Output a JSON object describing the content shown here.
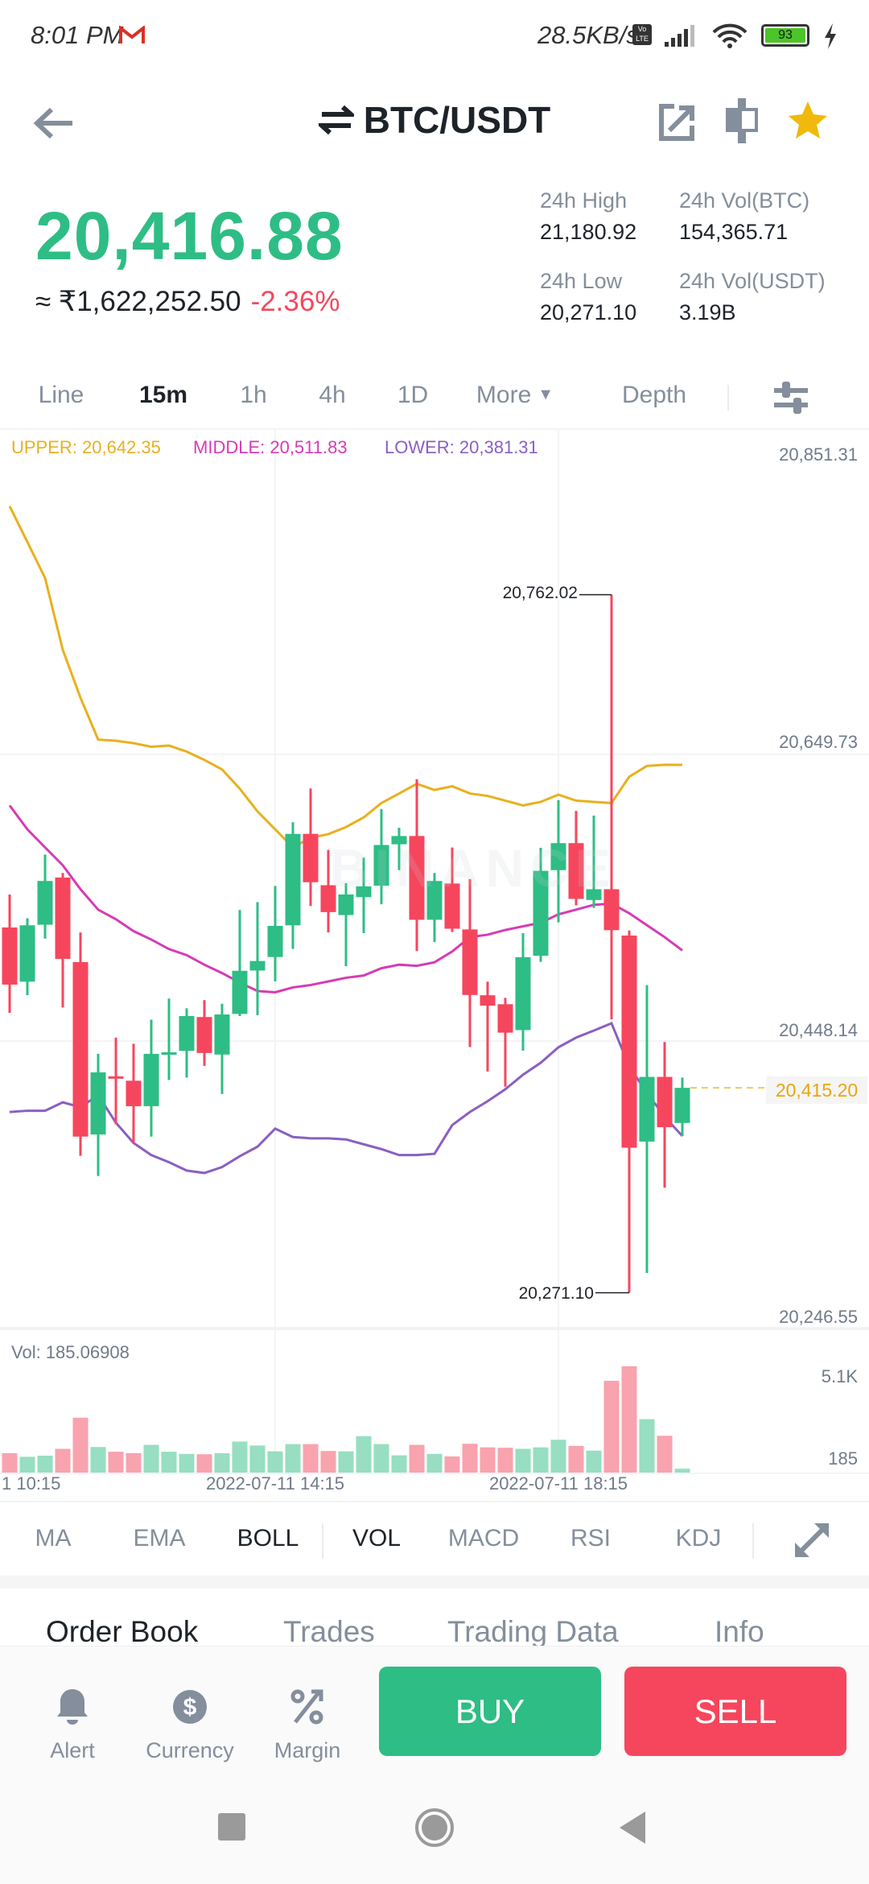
{
  "status_bar": {
    "time": "8:01 PM",
    "net_speed": "28.5KB/s",
    "volte": "Vo LTE",
    "battery": "93"
  },
  "header": {
    "pair": "BTC/USDT"
  },
  "ticker": {
    "last_price": "20,416.88",
    "fiat_approx": "≈ ₹1,622,252.50",
    "change_pct": "-2.36%",
    "stats": [
      {
        "label": "24h High",
        "value": "21,180.92"
      },
      {
        "label": "24h Vol(BTC)",
        "value": "154,365.71"
      },
      {
        "label": "24h Low",
        "value": "20,271.10"
      },
      {
        "label": "24h Vol(USDT)",
        "value": "3.19B"
      }
    ]
  },
  "intervals": {
    "items": [
      "Line",
      "15m",
      "1h",
      "4h",
      "1D",
      "More",
      "Depth"
    ],
    "active": "15m"
  },
  "colors": {
    "up": "#2EBD85",
    "down": "#F6465D",
    "upper": "#E9B01E",
    "middle": "#D63BB5",
    "lower": "#8A5FC2",
    "accent": "#F0B90B"
  },
  "chart_data": {
    "type": "candlestick",
    "interval": "15m",
    "legend": [
      "UPPER: 20,642.35",
      "MIDDLE: 20,511.83",
      "LOWER: 20,381.31"
    ],
    "ylim": [
      20245.4,
      20874.5
    ],
    "y_ticks": [
      20851.31,
      20649.73,
      20448.14,
      20246.55
    ],
    "y_tick_labels": [
      "20,851.31",
      "20,649.73",
      "20,448.14",
      "20,246.55"
    ],
    "high_marker": "20,762.02",
    "low_marker": "20,271.10",
    "current_price": 20415.2,
    "current_price_label": "20,415.20",
    "x_labels": [
      "1 10:15",
      "2022-07-11 14:15",
      "2022-07-11 18:15"
    ],
    "x_label_candle_index": [
      0,
      15,
      31
    ],
    "candles_ohlc": [
      [
        20528.0,
        20551.2,
        20467.9,
        20487.8
      ],
      [
        20489.9,
        20534.5,
        20480.4,
        20529.5
      ],
      [
        20529.9,
        20579.3,
        20520.2,
        20560.7
      ],
      [
        20563.1,
        20566.3,
        20471.7,
        20505.9
      ],
      [
        20503.6,
        20524.5,
        20367.4,
        20380.9
      ],
      [
        20382.4,
        20439.1,
        20353.2,
        20426.1
      ],
      [
        20423.3,
        20450.5,
        20389.5,
        20422.9
      ],
      [
        20420.2,
        20446.2,
        20375.9,
        20402.3
      ],
      [
        20402.3,
        20463.1,
        20380.9,
        20439.1
      ],
      [
        20439.6,
        20478.0,
        20420.7,
        20440.2
      ],
      [
        20441.2,
        20471.1,
        20422.4,
        20465.7
      ],
      [
        20465.0,
        20476.9,
        20430.6,
        20439.7
      ],
      [
        20438.6,
        20474.3,
        20410.9,
        20466.8
      ],
      [
        20467.2,
        20540.3,
        20465.7,
        20497.5
      ],
      [
        20497.7,
        20545.8,
        20466.3,
        20504.4
      ],
      [
        20507.2,
        20557.2,
        20490.1,
        20529.1
      ],
      [
        20529.5,
        20602.0,
        20512.9,
        20593.8
      ],
      [
        20593.8,
        20625.8,
        20543.1,
        20559.8
      ],
      [
        20557.7,
        20582.5,
        20524.5,
        20538.8
      ],
      [
        20536.7,
        20559.2,
        20500.8,
        20551.2
      ],
      [
        20549.3,
        20577.1,
        20524.0,
        20556.9
      ],
      [
        20557.4,
        20611.3,
        20544.3,
        20586.0
      ],
      [
        20586.5,
        20598.1,
        20568.3,
        20592.3
      ],
      [
        20592.3,
        20632.3,
        20511.4,
        20533.4
      ],
      [
        20533.4,
        20566.3,
        20517.7,
        20560.7
      ],
      [
        20558.9,
        20584.2,
        20524.8,
        20527.1
      ],
      [
        20526.6,
        20562.0,
        20443.9,
        20480.5
      ],
      [
        20480.3,
        20489.9,
        20426.7,
        20473.0
      ],
      [
        20474.0,
        20478.5,
        20416.0,
        20454.0
      ],
      [
        20455.8,
        20524.0,
        20441.3,
        20507.1
      ],
      [
        20508.1,
        20584.0,
        20503.8,
        20567.8
      ],
      [
        20568.3,
        20617.6,
        20531.6,
        20587.3
      ],
      [
        20587.3,
        20610.0,
        20543.5,
        20548.1
      ],
      [
        20547.3,
        20606.7,
        20541.7,
        20554.9
      ],
      [
        20554.9,
        20762.02,
        20463.3,
        20526.1
      ],
      [
        20522.3,
        20525.8,
        20271.1,
        20373.1
      ],
      [
        20377.4,
        20487.4,
        20285.0,
        20422.9
      ],
      [
        20422.9,
        20447.4,
        20345.0,
        20387.5
      ],
      [
        20390.5,
        20422.4,
        20381.2,
        20415.2
      ]
    ],
    "boll_upper": [
      20824.3,
      20799.1,
      20773.8,
      20723.3,
      20689.6,
      20660.1,
      20659.3,
      20657.6,
      20655.1,
      20655.9,
      20651.7,
      20645.8,
      20639.1,
      20625.6,
      20609.6,
      20597.0,
      20584.3,
      20591.1,
      20593.6,
      20598.6,
      20605.4,
      20615.5,
      20622.2,
      20629.0,
      20624.7,
      20627.3,
      20622.2,
      20620.5,
      20617.2,
      20613.8,
      20616.3,
      20621.4,
      20617.2,
      20616.3,
      20615.5,
      20634.0,
      20641.6,
      20642.4,
      20642.35
    ],
    "boll_middle": [
      20613.8,
      20597.0,
      20584.3,
      20571.7,
      20554.9,
      20540.5,
      20533.8,
      20525.4,
      20519.5,
      20512.8,
      20508.5,
      20501.8,
      20495.9,
      20489.2,
      20483.3,
      20482.4,
      20485.8,
      20487.5,
      20490.0,
      20492.6,
      20494.2,
      20499.3,
      20501.8,
      20501.0,
      20503.5,
      20511.1,
      20521.2,
      20522.9,
      20526.2,
      20528.8,
      20531.3,
      20537.2,
      20540.5,
      20543.9,
      20544.8,
      20538.0,
      20529.6,
      20521.2,
      20511.83
    ],
    "boll_lower": [
      20398.2,
      20399.1,
      20399.1,
      20405.0,
      20401.6,
      20410.0,
      20390.7,
      20376.4,
      20367.9,
      20362.9,
      20357.0,
      20355.3,
      20359.5,
      20367.1,
      20373.8,
      20386.5,
      20380.6,
      20379.7,
      20379.7,
      20378.9,
      20375.5,
      20372.1,
      20367.9,
      20367.9,
      20368.8,
      20389.0,
      20398.2,
      20405.8,
      20414.2,
      20424.4,
      20432.8,
      20443.7,
      20450.5,
      20455.5,
      20460.6,
      20430.2,
      20411.7,
      20394.9,
      20381.31
    ],
    "volume": {
      "label": "Vol: 185.06908",
      "axis_labels": [
        "5.1K",
        "185"
      ],
      "ylim": [
        0,
        5100
      ],
      "values": [
        932,
        758,
        810,
        1140,
        2634,
        1227,
        1001,
        932,
        1331,
        1001,
        897,
        880,
        932,
        1488,
        1297,
        1019,
        1366,
        1366,
        1036,
        1019,
        1748,
        1366,
        828,
        1331,
        897,
        776,
        1384,
        1210,
        1192,
        1140,
        1210,
        1575,
        1279,
        1054,
        4406,
        5100,
        2565,
        1766,
        185.07
      ]
    }
  },
  "indicators": {
    "items": [
      "MA",
      "EMA",
      "BOLL",
      "VOL",
      "MACD",
      "RSI",
      "KDJ"
    ],
    "active": [
      "BOLL",
      "VOL"
    ]
  },
  "bottom_tabs": {
    "items": [
      "Order Book",
      "Trades",
      "Trading Data",
      "Info"
    ],
    "active": "Order Book"
  },
  "actions": {
    "alert": "Alert",
    "currency": "Currency",
    "margin": "Margin",
    "buy": "BUY",
    "sell": "SELL"
  }
}
